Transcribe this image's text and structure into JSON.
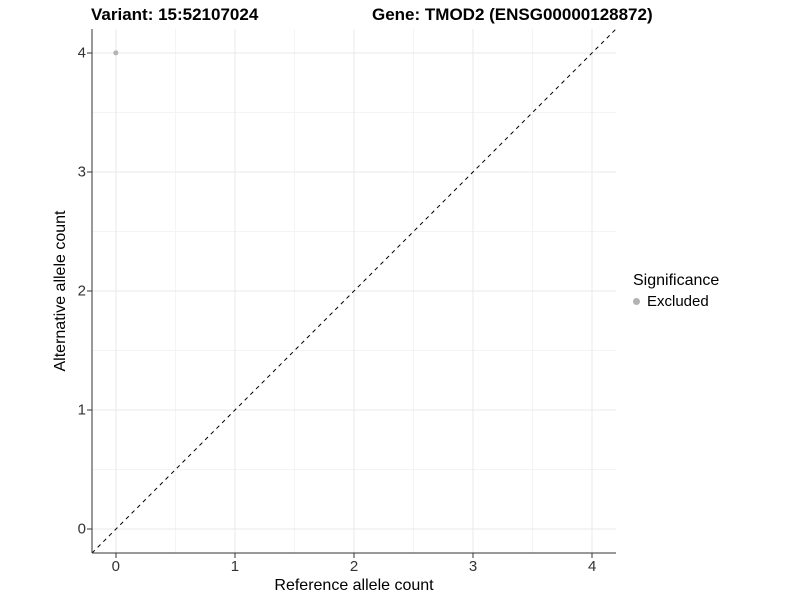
{
  "titles": {
    "variant": "Variant: 15:52107024",
    "gene": "Gene: TMOD2 (ENSG00000128872)"
  },
  "chart_data": {
    "type": "scatter",
    "xlabel": "Reference allele count",
    "ylabel": "Alternative allele count",
    "xlim": [
      -0.2,
      4.2
    ],
    "ylim": [
      -0.2,
      4.2
    ],
    "xticks": [
      0,
      1,
      2,
      3,
      4
    ],
    "yticks": [
      0,
      1,
      2,
      3,
      4
    ],
    "x_minor_gridlines": [
      0.5,
      1.5,
      2.5,
      3.5
    ],
    "y_minor_gridlines": [
      0.5,
      1.5,
      2.5,
      3.5
    ],
    "grid": "major and minor, on white background",
    "points": [
      {
        "x": 0,
        "y": 4,
        "significance": "Excluded",
        "radius": 2.5
      }
    ],
    "identity_line": {
      "style": "dashed",
      "slope": 1,
      "intercept": 0,
      "x_start": -0.2,
      "x_end": 4.2
    },
    "legend": {
      "title": "Significance",
      "position": "right",
      "entries": [
        {
          "label": "Excluded",
          "color": "#b3b3b3"
        }
      ]
    },
    "colors": {
      "point_excluded": "#b3b3b3",
      "grid_major": "#e8e8e8",
      "grid_minor": "#f4f4f4",
      "axis_line": "#333333",
      "tick_mark": "#333333",
      "tick_label": "#333333",
      "identity_line": "#000000",
      "background": "#ffffff"
    }
  }
}
